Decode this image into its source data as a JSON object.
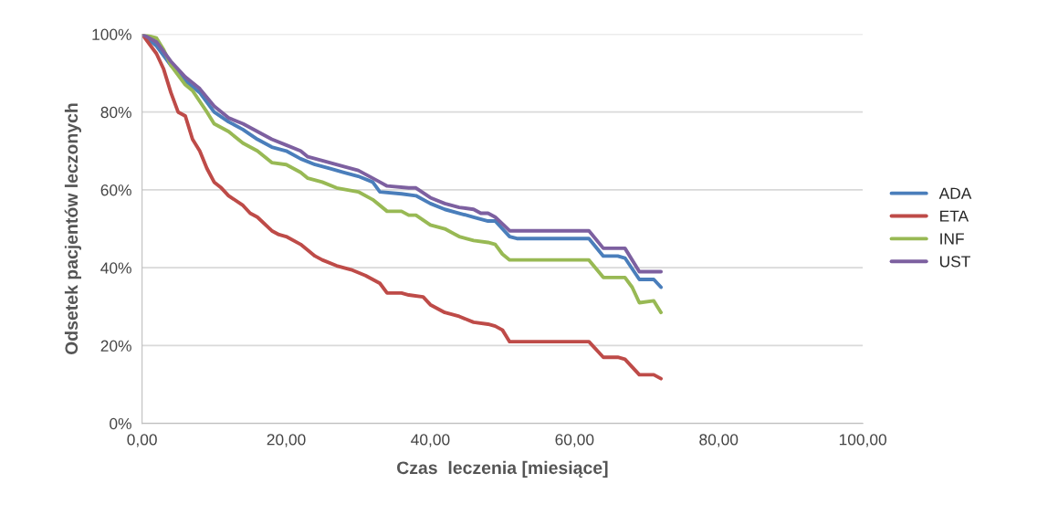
{
  "chart_data": {
    "type": "line",
    "xlabel": "Czas  leczenia [miesiące]",
    "ylabel": "Odsetek pacjentów leczonych",
    "xlim": [
      0,
      100
    ],
    "xticks": [
      {
        "value": 0,
        "label": "0,00"
      },
      {
        "value": 20,
        "label": "20,00"
      },
      {
        "value": 40,
        "label": "40,00"
      },
      {
        "value": 60,
        "label": "60,00"
      },
      {
        "value": 80,
        "label": "80,00"
      },
      {
        "value": 100,
        "label": "100,00"
      }
    ],
    "ylim": [
      0,
      100
    ],
    "yticks": [
      {
        "value": 0,
        "label": "0%"
      },
      {
        "value": 20,
        "label": "20%"
      },
      {
        "value": 40,
        "label": "40%"
      },
      {
        "value": 60,
        "label": "60%"
      },
      {
        "value": 80,
        "label": "80%"
      },
      {
        "value": 100,
        "label": "100%"
      }
    ],
    "grid": "y",
    "legend": "right",
    "marker": "none",
    "line_style": "solid",
    "series": [
      {
        "name": "ADA",
        "color": "#4a7ebb",
        "x": [
          0,
          2,
          4,
          6,
          8,
          10,
          12,
          14,
          16,
          18,
          20,
          22,
          24,
          26,
          28,
          30,
          32,
          33,
          36,
          38,
          40,
          42,
          44,
          46,
          48,
          49,
          51,
          52,
          60,
          62,
          64,
          66,
          67,
          69,
          71,
          72
        ],
        "values": [
          100,
          97,
          92,
          88,
          85,
          80,
          77.5,
          75.5,
          73,
          71,
          70,
          68,
          66.5,
          65.5,
          64.5,
          63.5,
          62,
          59.5,
          59,
          58.5,
          56.5,
          55,
          54,
          53,
          52,
          52,
          48,
          47.5,
          47.5,
          47.5,
          43,
          43,
          42.5,
          37,
          37,
          35
        ]
      },
      {
        "name": "ETA",
        "color": "#be4b48",
        "x": [
          0,
          2,
          3,
          4,
          5,
          6,
          7,
          8,
          9,
          10,
          11,
          12,
          14,
          15,
          16,
          18,
          19,
          20,
          22,
          24,
          25,
          27,
          29,
          31,
          33,
          34,
          36,
          37,
          39,
          40,
          42,
          44,
          46,
          48,
          49,
          50,
          51,
          52,
          61,
          62,
          64,
          66,
          67,
          69,
          71,
          72
        ],
        "values": [
          100,
          95,
          91,
          85,
          80,
          79,
          73,
          70,
          65.5,
          62,
          60.5,
          58.5,
          56,
          54,
          53,
          49.5,
          48.5,
          48,
          46,
          43,
          42,
          40.5,
          39.5,
          38,
          36,
          33.5,
          33.5,
          33,
          32.5,
          30.5,
          28.5,
          27.5,
          26,
          25.5,
          25,
          24,
          21,
          21,
          21,
          21,
          17,
          17,
          16.5,
          12.5,
          12.5,
          11.5
        ]
      },
      {
        "name": "INF",
        "color": "#98b954",
        "x": [
          0,
          2,
          3,
          4,
          6,
          7,
          9,
          10,
          12,
          14,
          16,
          18,
          20,
          22,
          23,
          25,
          27,
          30,
          32,
          34,
          36,
          37,
          38,
          40,
          42,
          44,
          46,
          48,
          49,
          50,
          51,
          52,
          61,
          62,
          64,
          66,
          67,
          68,
          69,
          71,
          72
        ],
        "values": [
          100,
          99,
          96,
          92,
          87,
          85.5,
          80,
          77,
          75,
          72,
          70,
          67,
          66.5,
          64.5,
          63,
          62,
          60.5,
          59.5,
          57.5,
          54.5,
          54.5,
          53.5,
          53.5,
          51,
          50,
          48,
          47,
          46.5,
          46,
          43.5,
          42,
          42,
          42,
          42,
          37.5,
          37.5,
          37.5,
          35,
          31,
          31.5,
          28.5
        ]
      },
      {
        "name": "UST",
        "color": "#7d60a0",
        "x": [
          0,
          2,
          4,
          6,
          8,
          10,
          12,
          14,
          16,
          18,
          20,
          22,
          23,
          25,
          28,
          30,
          31,
          33,
          34,
          37,
          38,
          40,
          42,
          44,
          46,
          47,
          48,
          49,
          51,
          52,
          61,
          62,
          64,
          66,
          67,
          69,
          72
        ],
        "values": [
          100,
          98,
          93,
          89,
          86,
          81.5,
          78.5,
          77,
          75,
          73,
          71.5,
          70,
          68.5,
          67.5,
          66,
          65,
          64,
          62,
          61,
          60.5,
          60.5,
          58,
          56.5,
          55.5,
          55,
          54,
          54,
          53,
          49.5,
          49.5,
          49.5,
          49.5,
          45,
          45,
          45,
          39,
          39
        ]
      }
    ]
  }
}
